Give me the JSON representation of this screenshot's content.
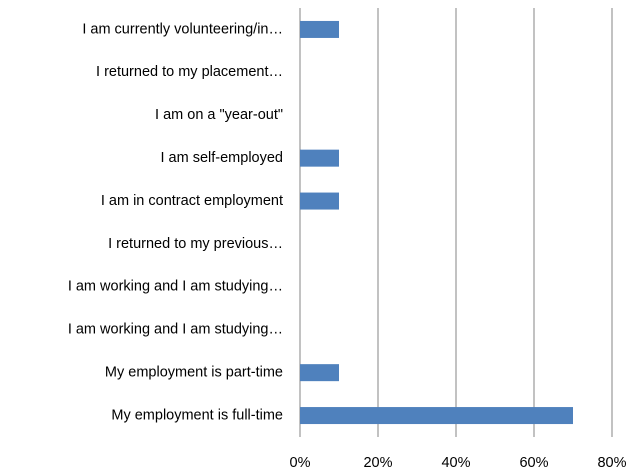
{
  "chart_data": {
    "type": "barh",
    "categories": [
      "I am currently volunteering/in…",
      "I returned to my placement…",
      "I am on a \"year-out\"",
      "I am self-employed",
      "I am in contract employment",
      "I returned to my previous…",
      "I am working and I am studying…",
      "I am working and I am studying…",
      "My employment is part-time",
      "My employment is full-time"
    ],
    "values": [
      10,
      0,
      0,
      10,
      10,
      0,
      0,
      0,
      10,
      70
    ],
    "color": "#4f81bd",
    "xlim": [
      0,
      80
    ],
    "xticks": [
      {
        "value": 0,
        "label": "0%"
      },
      {
        "value": 20,
        "label": "20%"
      },
      {
        "value": 40,
        "label": "40%"
      },
      {
        "value": 60,
        "label": "60%"
      },
      {
        "value": 80,
        "label": "80%"
      }
    ],
    "grid": true
  }
}
